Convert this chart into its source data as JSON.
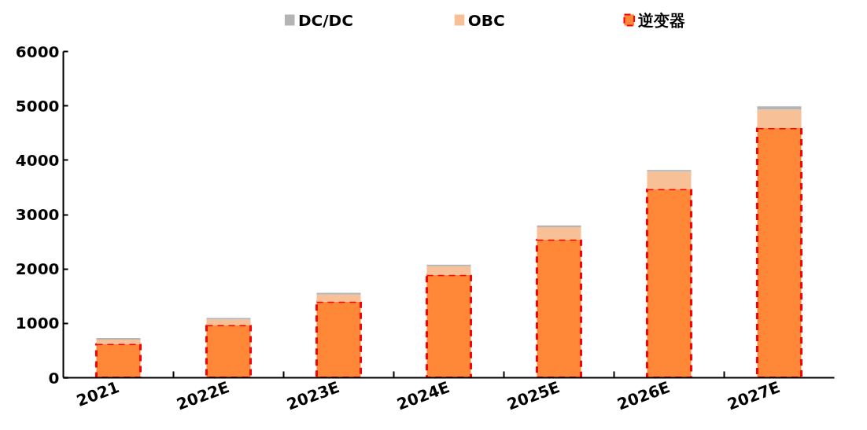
{
  "chart_data": {
    "type": "bar",
    "stacked": true,
    "categories": [
      "2021",
      "2022E",
      "2023E",
      "2024E",
      "2025E",
      "2026E",
      "2027E"
    ],
    "series": [
      {
        "name": "逆变器",
        "color": "#ff8838",
        "line_style": "dashed",
        "values": [
          620,
          970,
          1400,
          1890,
          2540,
          3470,
          4590
        ]
      },
      {
        "name": "OBC",
        "color": "#f8c097",
        "values": [
          80,
          100,
          130,
          160,
          230,
          320,
          340
        ]
      },
      {
        "name": "DC/DC",
        "color": "#b4b4b4",
        "values": [
          30,
          30,
          30,
          30,
          30,
          30,
          60
        ]
      }
    ],
    "ylim": [
      0,
      6000
    ],
    "yticks": [
      0,
      1000,
      2000,
      3000,
      4000,
      5000,
      6000
    ],
    "grid": false,
    "legend": "top"
  }
}
